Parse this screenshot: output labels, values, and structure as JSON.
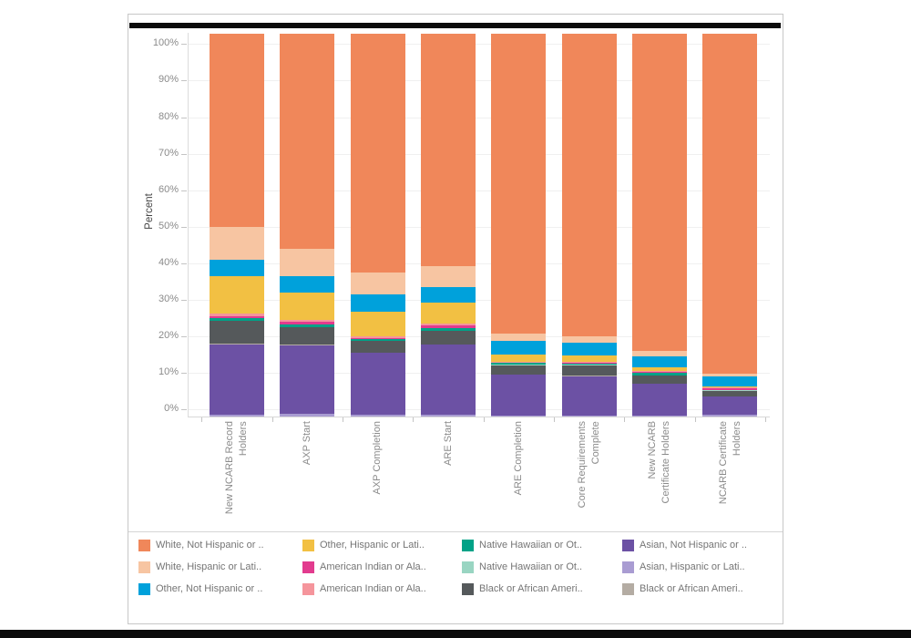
{
  "window": {
    "background": "#ffffff",
    "frame_border_color": "#c7c7c7",
    "top_strip_color": "#0b0b0b",
    "bottom_strip_color": "#0b0b0b"
  },
  "chart_data": {
    "type": "bar",
    "stacked": true,
    "orientation": "vertical",
    "title": "",
    "ylabel": "Percent",
    "ylim": [
      0,
      100
    ],
    "y_ticks": [
      "0%",
      "10%",
      "20%",
      "30%",
      "40%",
      "50%",
      "60%",
      "70%",
      "80%",
      "90%",
      "100%"
    ],
    "grid": "horizontal",
    "legend_position": "bottom",
    "categories": [
      "New NCARB Record\nHolders",
      "AXP Start",
      "AXP Completion",
      "ARE Start",
      "ARE Completion",
      "Core Requirements\nComplete",
      "New NCARB\nCertificate Holders",
      "NCARB Certificate\nHolders"
    ],
    "series": [
      {
        "key": "white_nh",
        "label": "White, Not Hispanic or ..",
        "color": "#F0875A",
        "values": [
          50.4,
          56.1,
          62.4,
          60.8,
          78.3,
          78.9,
          82.8,
          88.8
        ]
      },
      {
        "key": "white_h",
        "label": "White, Hispanic or Lati..",
        "color": "#F7C5A2",
        "values": [
          8.6,
          7.2,
          5.6,
          5.4,
          1.9,
          1.8,
          1.4,
          0.6
        ]
      },
      {
        "key": "other_nh",
        "label": "Other, Not Hispanic or ..",
        "color": "#00A1DB",
        "values": [
          4.4,
          4.3,
          4.5,
          4.0,
          3.6,
          3.2,
          2.9,
          2.6
        ]
      },
      {
        "key": "other_h",
        "label": "Other, Hispanic or Lati..",
        "color": "#F2C043",
        "values": [
          9.7,
          7.1,
          6.5,
          5.5,
          1.8,
          1.8,
          1.0,
          0.4
        ]
      },
      {
        "key": "amind_h",
        "label": "American Indian or Ala..",
        "color": "#F5959C",
        "values": [
          0.6,
          0.6,
          0.4,
          0.5,
          0.2,
          0.2,
          0.2,
          0.2
        ]
      },
      {
        "key": "amind_nh",
        "label": "American Indian or Ala..",
        "color": "#E23B8E",
        "values": [
          0.6,
          0.7,
          0.4,
          0.6,
          0.2,
          0.2,
          0.3,
          0.4
        ]
      },
      {
        "key": "nathaw_nh",
        "label": "Native Hawaiian or Ot..",
        "color": "#00A287",
        "values": [
          0.7,
          0.6,
          0.4,
          0.8,
          0.5,
          0.4,
          0.6,
          0.1
        ]
      },
      {
        "key": "nathaw_h",
        "label": "Native Hawaiian or Ot..",
        "color": "#99D5C2",
        "values": [
          0.1,
          0.1,
          0.1,
          0.1,
          0.1,
          0.1,
          0.1,
          0.1
        ]
      },
      {
        "key": "black_nh",
        "label": "Black or African Ameri..",
        "color": "#55595B",
        "values": [
          5.9,
          4.5,
          3.0,
          3.4,
          2.4,
          2.7,
          2.0,
          1.5
        ]
      },
      {
        "key": "black_h",
        "label": "Black or African Ameri..",
        "color": "#B4ACA3",
        "values": [
          0.1,
          0.1,
          0.1,
          0.1,
          0.1,
          0.1,
          0.1,
          0.1
        ]
      },
      {
        "key": "asian_nh",
        "label": "Asian, Not Hispanic or ..",
        "color": "#6C51A4",
        "values": [
          18.3,
          18.0,
          16.1,
          18.3,
          10.5,
          10.3,
          8.3,
          4.7
        ]
      },
      {
        "key": "asian_h",
        "label": "Asian, Hispanic or Lati..",
        "color": "#A99CD2",
        "values": [
          0.6,
          0.7,
          0.5,
          0.5,
          0.4,
          0.3,
          0.3,
          0.5
        ]
      }
    ],
    "legend_columns": [
      [
        "white_nh",
        "white_h",
        "other_nh"
      ],
      [
        "other_h",
        "amind_nh",
        "amind_h"
      ],
      [
        "nathaw_nh",
        "nathaw_h",
        "black_nh"
      ],
      [
        "asian_nh",
        "asian_h",
        "black_h"
      ]
    ]
  }
}
